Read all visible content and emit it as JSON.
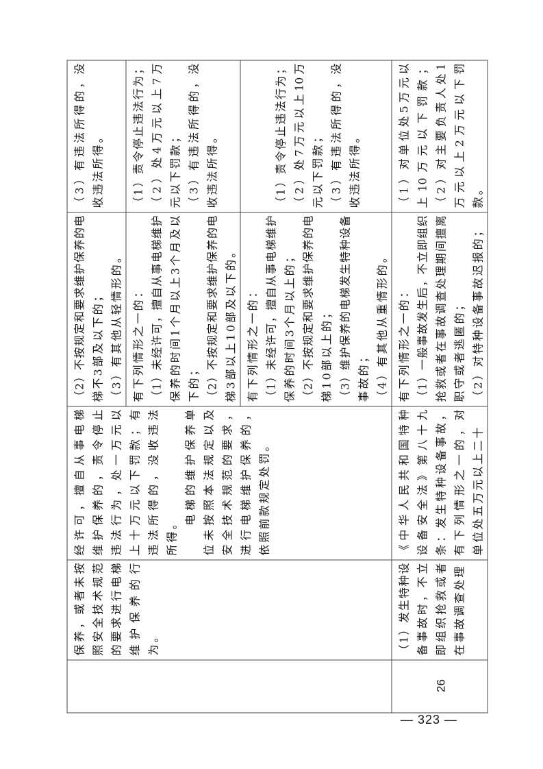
{
  "cells": {
    "number_26": "26",
    "violation_prev": [
      "保养，或者未按",
      "照安全技术规范",
      "的要求进行电梯",
      "维护保养的行",
      "为。"
    ],
    "violation_26": [
      "（1）发生特种设",
      "备事故时，不立",
      "即组织抢救或者",
      "在事故调查处理"
    ],
    "basis_prev": [
      "经许可，擅自从事电梯",
      "维护保养的，责令停止",
      "违法行为，处一万元以",
      "上十万元以下罚款；有",
      "违法所得的，没收违法",
      "所得。",
      "　　电梯的维护保养单",
      "位未按照本法规定以及",
      "安全技术规范的要求，",
      "进行电梯维护保养的，",
      "依照前款规定处罚。"
    ],
    "basis_26": [
      "《中华人民共和国特种",
      "设备安全法》第八十九",
      "条：发生特种设备事故，",
      "有下列情形之一的，对",
      "单位处五万元以上二十"
    ],
    "circumstances": [
      [
        "（2）不按规定和要求维护保养的电",
        "梯不3部及以下的；",
        "（3）有其他从轻情形的。"
      ],
      [
        "有下列情形之一的：",
        "（1）未经许可，擅自从事电梯维护",
        "保养的时间1个月以上3个月及以",
        "下的；",
        "（2）不按规定和要求维护保养的电",
        "梯3部以上10部及以下的。"
      ],
      [
        "有下列情形之一的：",
        "（1）未经许可，擅自从事电梯维护",
        "保养的时间3个月以上的；",
        "（2）不按规定和要求维护保养的电",
        "梯10部以上的；",
        "（3）维护保养的电梯发生特种设备",
        "事故的；",
        "（4）有其他从重情形的。"
      ],
      [
        "有下列情形之一的：",
        "（1）一般事故发生后，不立即组织",
        "抢救或者在事故调查处理期间擅离",
        "职守或者逃匿的；",
        "（2）对特种设备事故迟报的；"
      ]
    ],
    "penalty": [
      [
        "（3）有违法所得的，没",
        "收违法所得。"
      ],
      [
        "（1）责令停止违法行为；",
        "（2）处4万元以上7万",
        "元以下罚款；",
        "（3）有违法所得的，没",
        "收违法所得。"
      ],
      [
        "（1）责令停止违法行为；",
        "（2）处7万元以上10万",
        "元以下罚款；",
        "（3）有违法所得的，没",
        "收违法所得。"
      ],
      [
        "（1）对单位处5万元以",
        "上10万元以下罚款；",
        "（2）对主要负责人处1",
        "万元以上2万元以下罚",
        "款。"
      ]
    ]
  },
  "page_number": "— 323 —"
}
